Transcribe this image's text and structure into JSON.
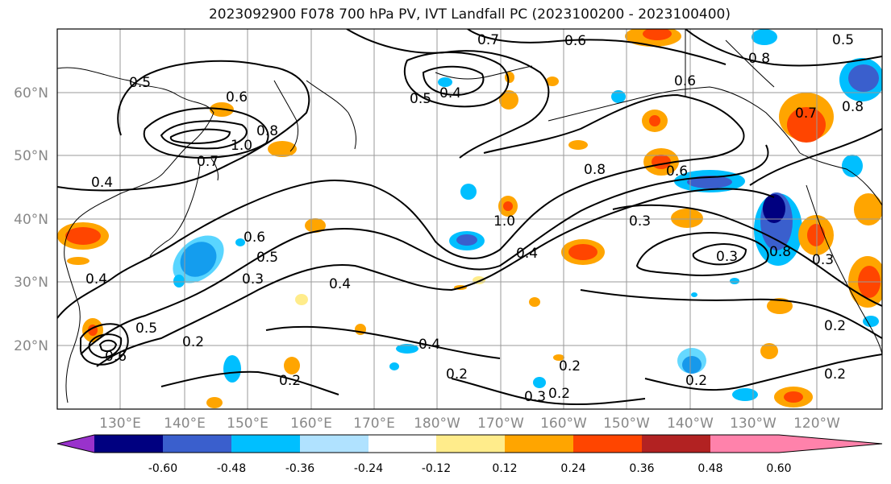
{
  "title": "2023092900 F078 700 hPa PV, IVT Landfall PC (2023100200 - 2023100400)",
  "lat_labels": [
    "60°N",
    "50°N",
    "40°N",
    "30°N",
    "20°N"
  ],
  "lon_labels": [
    "130°E",
    "140°E",
    "150°E",
    "160°E",
    "170°E",
    "180°W",
    "170°W",
    "160°W",
    "150°W",
    "140°W",
    "130°W",
    "120°W"
  ],
  "colorbar": {
    "colors": [
      "#9932cc",
      "#000080",
      "#3a5fcd",
      "#00bfff",
      "#b0e2ff",
      "#ffffff",
      "#ffec8b",
      "#ffa500",
      "#ff4500",
      "#b22222",
      "#ff82ab"
    ],
    "tick_labels": [
      "-0.60",
      "-0.48",
      "-0.36",
      "-0.24",
      "-0.12",
      "0.12",
      "0.24",
      "0.36",
      "0.48",
      "0.60"
    ]
  },
  "contour_labels": [
    "0.7",
    "0.6",
    "0.5",
    "0.8",
    "0.6",
    "0.4",
    "0.5",
    "0.6",
    "0.5",
    "1.0",
    "0.8",
    "0.7",
    "0.4",
    "0.8",
    "0.6",
    "0.6",
    "0.5",
    "0.3",
    "0.4",
    "0.4",
    "1.0",
    "0.4",
    "0.3",
    "0.3",
    "0.8",
    "0.3",
    "0.5",
    "0.6",
    "0.2",
    "0.4",
    "0.2",
    "0.2",
    "0.2",
    "0.3",
    "0.2",
    "0.2",
    "0.2",
    "0.2",
    "0.8",
    "0.7"
  ]
}
